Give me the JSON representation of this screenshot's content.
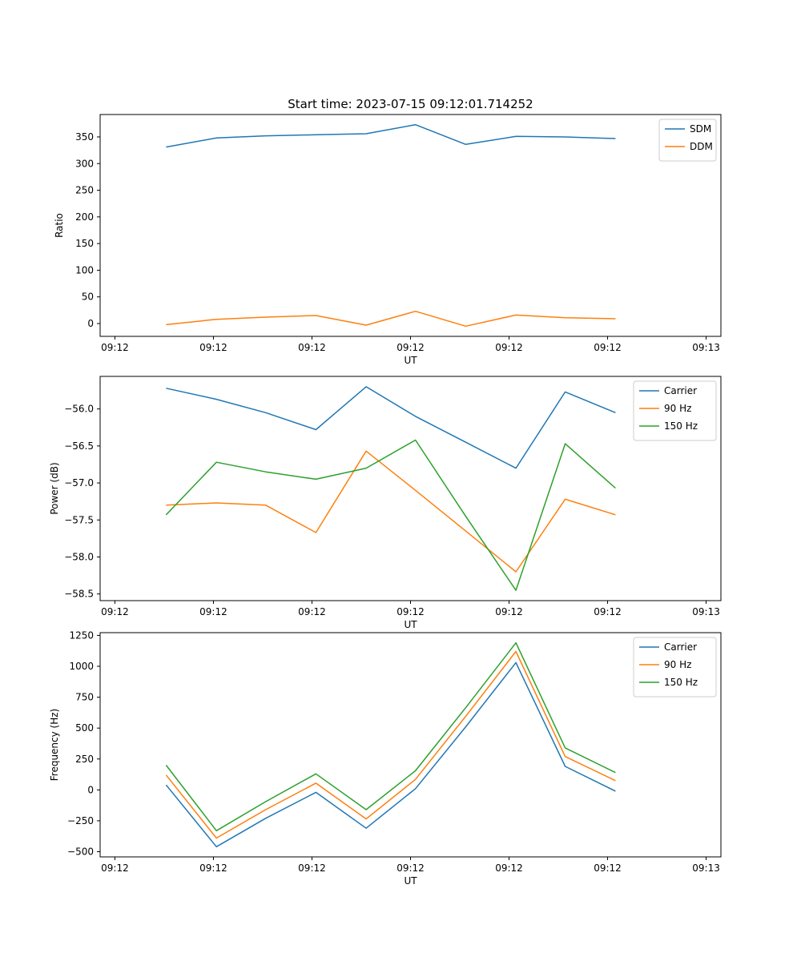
{
  "figure": {
    "background": "#ffffff"
  },
  "chart_data": [
    {
      "type": "line",
      "title": "Start time: 2023-07-15 09:12:01.714252",
      "xlabel": "UT",
      "ylabel": "Ratio",
      "grid": false,
      "legend_position": "upper right",
      "xlim": [
        -1.5,
        61.5
      ],
      "xtick_positions": [
        0,
        10,
        20,
        30,
        40,
        50,
        60
      ],
      "xtick_labels": [
        "09:12",
        "09:12",
        "09:12",
        "09:12",
        "09:12",
        "09:12",
        "09:13"
      ],
      "ylim": [
        -24,
        392
      ],
      "ytick_positions": [
        0,
        50,
        100,
        150,
        200,
        250,
        300,
        350
      ],
      "ytick_labels": [
        "0",
        "50",
        "100",
        "150",
        "200",
        "250",
        "300",
        "350"
      ],
      "x_seconds": [
        5.2,
        10.3,
        15.3,
        20.4,
        25.5,
        30.5,
        35.6,
        40.7,
        45.7,
        50.8
      ],
      "series": [
        {
          "name": "SDM",
          "color": "#1f77b4",
          "values": [
            331,
            348,
            352,
            354,
            356,
            373,
            336,
            351,
            350,
            347
          ]
        },
        {
          "name": "DDM",
          "color": "#ff7f0e",
          "values": [
            -2,
            8,
            12,
            15,
            -3,
            23,
            -5,
            16,
            11,
            9
          ]
        }
      ]
    },
    {
      "type": "line",
      "title": "",
      "xlabel": "UT",
      "ylabel": "Power (dB)",
      "grid": false,
      "legend_position": "upper right",
      "xlim": [
        -1.5,
        61.5
      ],
      "xtick_positions": [
        0,
        10,
        20,
        30,
        40,
        50,
        60
      ],
      "xtick_labels": [
        "09:12",
        "09:12",
        "09:12",
        "09:12",
        "09:12",
        "09:12",
        "09:13"
      ],
      "ylim": [
        -58.59,
        -55.56
      ],
      "ytick_positions": [
        -58.5,
        -58.0,
        -57.5,
        -57.0,
        -56.5,
        -56.0
      ],
      "ytick_labels": [
        "−58.5",
        "−58.0",
        "−57.5",
        "−57.0",
        "−56.5",
        "−56.0"
      ],
      "x_seconds": [
        5.2,
        10.3,
        15.3,
        20.4,
        25.5,
        30.5,
        35.6,
        40.7,
        45.7,
        50.8
      ],
      "series": [
        {
          "name": "Carrier",
          "color": "#1f77b4",
          "values": [
            -55.72,
            -55.87,
            -56.05,
            -56.28,
            -55.7,
            -56.1,
            -56.45,
            -56.8,
            -55.77,
            -56.05
          ]
        },
        {
          "name": "90 Hz",
          "color": "#ff7f0e",
          "values": [
            -57.3,
            -57.27,
            -57.3,
            -57.67,
            -56.57,
            -57.1,
            -57.65,
            -58.2,
            -57.22,
            -57.43
          ]
        },
        {
          "name": "150 Hz",
          "color": "#2ca02c",
          "values": [
            -57.43,
            -56.72,
            -56.85,
            -56.95,
            -56.8,
            -56.42,
            -57.45,
            -58.45,
            -56.47,
            -57.07
          ]
        }
      ]
    },
    {
      "type": "line",
      "title": "",
      "xlabel": "UT",
      "ylabel": "Frequency (Hz)",
      "grid": false,
      "legend_position": "upper right",
      "xlim": [
        -1.5,
        61.5
      ],
      "xtick_positions": [
        0,
        10,
        20,
        30,
        40,
        50,
        60
      ],
      "xtick_labels": [
        "09:12",
        "09:12",
        "09:12",
        "09:12",
        "09:12",
        "09:12",
        "09:13"
      ],
      "ylim": [
        -542,
        1272
      ],
      "ytick_positions": [
        -500,
        -250,
        0,
        250,
        500,
        750,
        1000,
        1250
      ],
      "ytick_labels": [
        "−500",
        "−250",
        "0",
        "250",
        "500",
        "750",
        "1000",
        "1250"
      ],
      "x_seconds": [
        5.2,
        10.3,
        15.3,
        20.4,
        25.5,
        30.5,
        35.6,
        40.7,
        45.7,
        50.8
      ],
      "series": [
        {
          "name": "Carrier",
          "color": "#1f77b4",
          "values": [
            40,
            -460,
            -230,
            -20,
            -310,
            10,
            510,
            1030,
            190,
            -10
          ]
        },
        {
          "name": "90 Hz",
          "color": "#ff7f0e",
          "values": [
            120,
            -390,
            -160,
            55,
            -235,
            85,
            595,
            1120,
            270,
            75
          ]
        },
        {
          "name": "150 Hz",
          "color": "#2ca02c",
          "values": [
            200,
            -330,
            -95,
            130,
            -160,
            155,
            665,
            1190,
            340,
            140
          ]
        }
      ]
    }
  ]
}
